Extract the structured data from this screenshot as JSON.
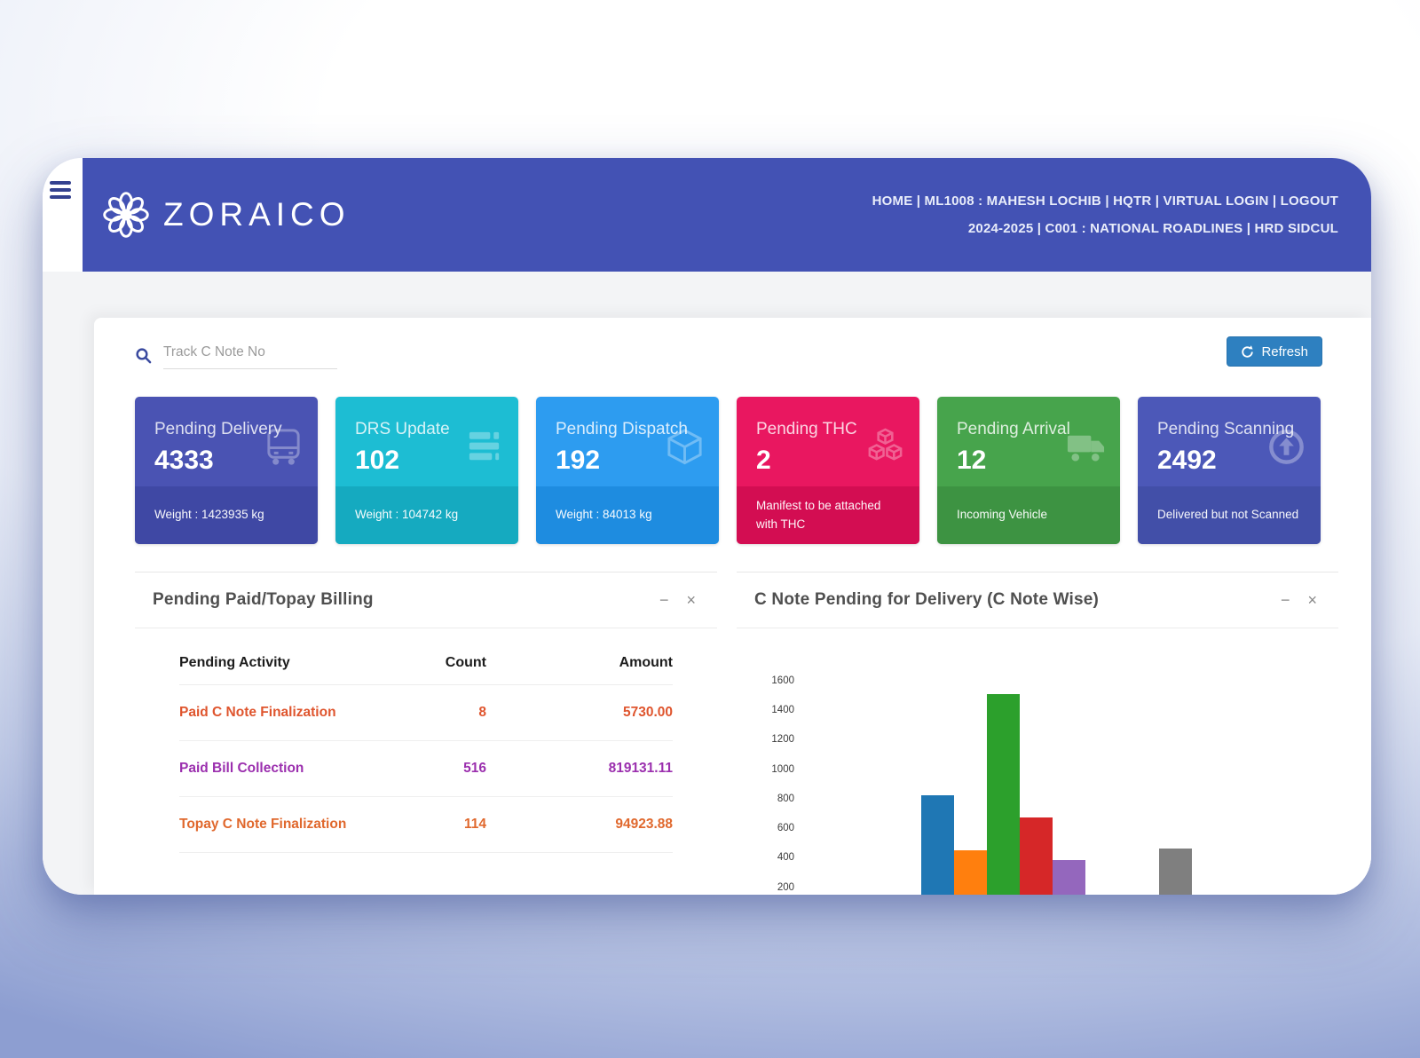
{
  "theme": {
    "header_bg": "#4352b4",
    "refresh_bg": "#2e80c0"
  },
  "header": {
    "brand": "ZORAICO",
    "nav_line1": "HOME | ML1008 : MAHESH LOCHIB | HQTR | VIRTUAL LOGIN | LOGOUT",
    "nav_line2": "2024-2025 | C001 : NATIONAL ROADLINES | HRD SIDCUL"
  },
  "toolbar": {
    "search_placeholder": "Track C Note No",
    "refresh_label": "Refresh"
  },
  "kpi_cards": [
    {
      "title": "Pending Delivery",
      "value": "4333",
      "footer": "Weight : 1423935 kg",
      "color": "#4a53b3",
      "footer_color": "#3f48a4",
      "icon": "bus-icon"
    },
    {
      "title": "DRS Update",
      "value": "102",
      "footer": "Weight : 104742 kg",
      "color": "#1dbdd3",
      "footer_color": "#15aac0",
      "icon": "server-icon"
    },
    {
      "title": "Pending Dispatch",
      "value": "192",
      "footer": "Weight : 84013 kg",
      "color": "#2d9cf0",
      "footer_color": "#1e8ce0",
      "icon": "cube-icon"
    },
    {
      "title": "Pending THC",
      "value": "2",
      "footer": "Manifest to be attached with THC",
      "color": "#e91760",
      "footer_color": "#d30d52",
      "icon": "cubes-icon"
    },
    {
      "title": "Pending Arrival",
      "value": "12",
      "footer": "Incoming Vehicle",
      "color": "#47a44c",
      "footer_color": "#3d9342",
      "icon": "truck-icon"
    },
    {
      "title": "Pending Scanning",
      "value": "2492",
      "footer": "Delivered but not Scanned",
      "color": "#4c58b8",
      "footer_color": "#424fa8",
      "icon": "upload-icon"
    }
  ],
  "billing_panel": {
    "title": "Pending Paid/Topay Billing",
    "columns": [
      "Pending Activity",
      "Count",
      "Amount"
    ],
    "rows": [
      {
        "activity": "Paid C Note Finalization",
        "count": "8",
        "amount": "5730.00",
        "color": "#df552e"
      },
      {
        "activity": "Paid Bill Collection",
        "count": "516",
        "amount": "819131.11",
        "color": "#9b2fae"
      },
      {
        "activity": "Topay C Note Finalization",
        "count": "114",
        "amount": "94923.88",
        "color": "#e0682d"
      }
    ]
  },
  "chart_panel": {
    "title": "C Note Pending for Delivery (C Note Wise)"
  },
  "chart_data": {
    "type": "bar",
    "title": "C Note Pending for Delivery (C Note Wise)",
    "values": [
      820,
      450,
      1510,
      670,
      385,
      460
    ],
    "colors": [
      "#1f77b4",
      "#ff7f0e",
      "#2ca02c",
      "#d62728",
      "#9467bd",
      "#7f7f7f"
    ],
    "x_slots": [
      0,
      1,
      2,
      3,
      4,
      7.25
    ],
    "y_ticks": [
      200,
      400,
      600,
      800,
      1000,
      1200,
      1400,
      1600
    ],
    "ylim": [
      0,
      1700
    ],
    "grid": false,
    "legend": "none",
    "xlabel": "",
    "ylabel": "",
    "note": "x-axis baseline and category labels are clipped at the card bottom edge"
  },
  "window_controls": {
    "minimize": "−",
    "close": "×"
  }
}
